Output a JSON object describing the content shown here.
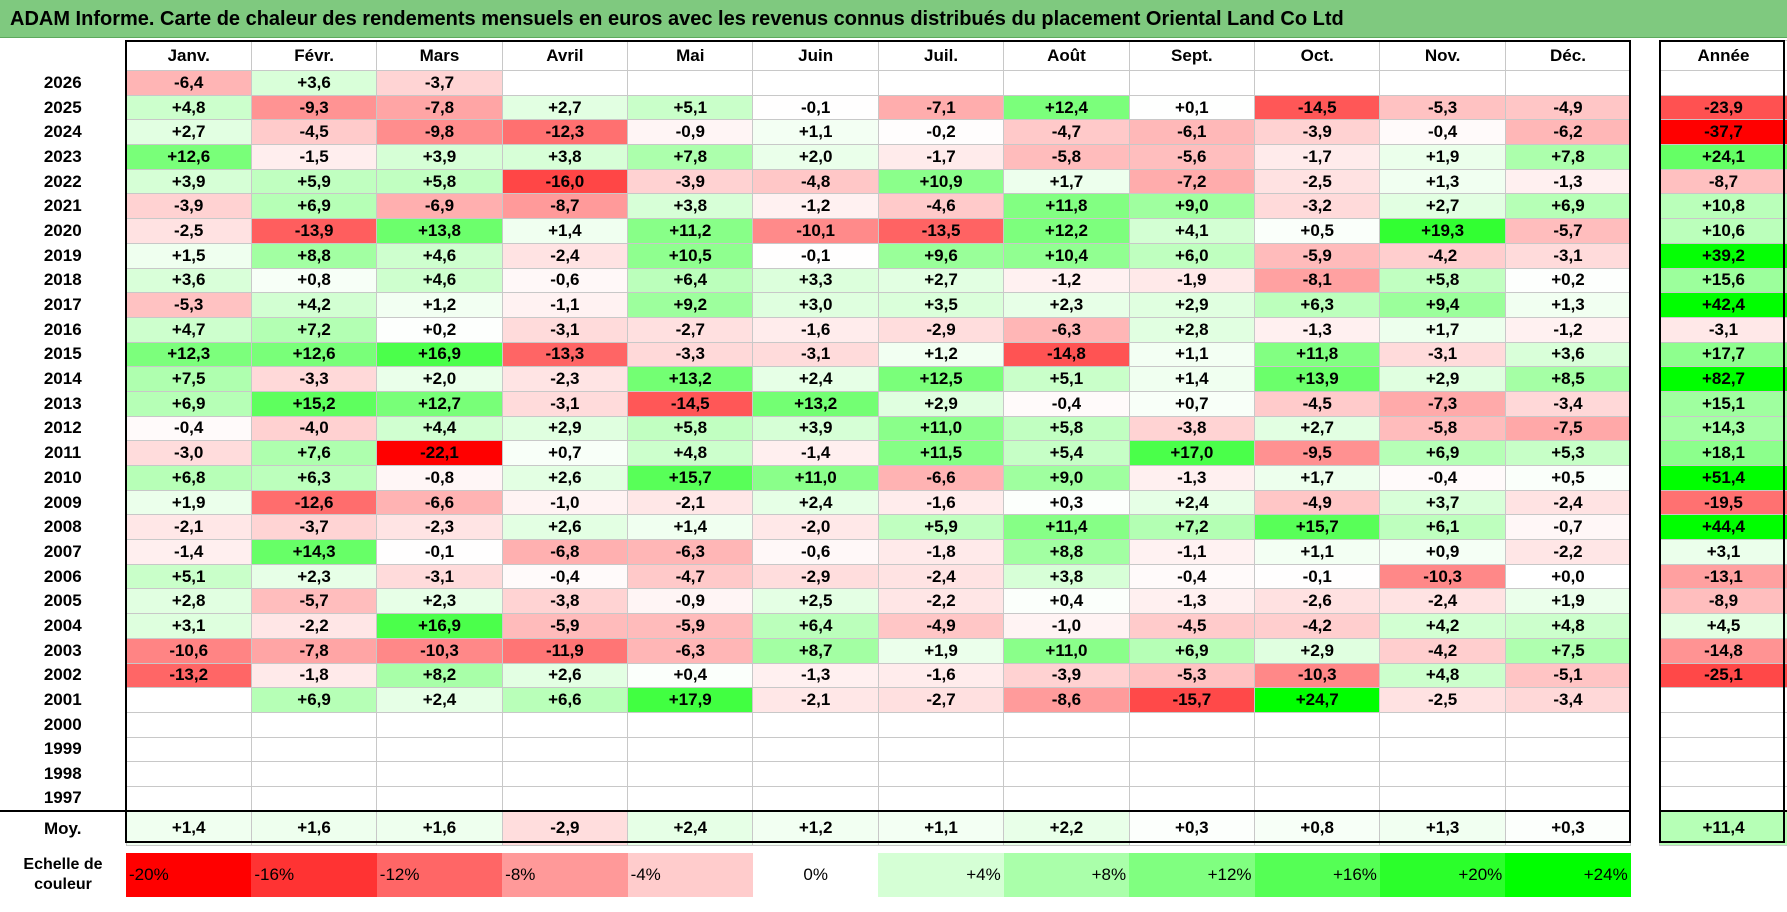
{
  "title": "ADAM Informe. Carte de chaleur des rendements mensuels en euros avec les revenus connus distribués du placement Oriental Land Co Ltd",
  "chart_data": {
    "type": "heatmap",
    "months": [
      "Janv.",
      "Févr.",
      "Mars",
      "Avril",
      "Mai",
      "Juin",
      "Juil.",
      "Août",
      "Sept.",
      "Oct.",
      "Nov.",
      "Déc."
    ],
    "year_header": "Année",
    "rows": [
      {
        "year": "2026",
        "values": [
          "-6,4",
          "+3,6",
          "-3,7",
          "",
          "",
          "",
          "",
          "",
          "",
          "",
          "",
          ""
        ],
        "annual": ""
      },
      {
        "year": "2025",
        "values": [
          "+4,8",
          "-9,3",
          "-7,8",
          "+2,7",
          "+5,1",
          "-0,1",
          "-7,1",
          "+12,4",
          "+0,1",
          "-14,5",
          "-5,3",
          "-4,9"
        ],
        "annual": "-23,9"
      },
      {
        "year": "2024",
        "values": [
          "+2,7",
          "-4,5",
          "-9,8",
          "-12,3",
          "-0,9",
          "+1,1",
          "-0,2",
          "-4,7",
          "-6,1",
          "-3,9",
          "-0,4",
          "-6,2"
        ],
        "annual": "-37,7"
      },
      {
        "year": "2023",
        "values": [
          "+12,6",
          "-1,5",
          "+3,9",
          "+3,8",
          "+7,8",
          "+2,0",
          "-1,7",
          "-5,8",
          "-5,6",
          "-1,7",
          "+1,9",
          "+7,8"
        ],
        "annual": "+24,1"
      },
      {
        "year": "2022",
        "values": [
          "+3,9",
          "+5,9",
          "+5,8",
          "-16,0",
          "-3,9",
          "-4,8",
          "+10,9",
          "+1,7",
          "-7,2",
          "-2,5",
          "+1,3",
          "-1,3"
        ],
        "annual": "-8,7"
      },
      {
        "year": "2021",
        "values": [
          "-3,9",
          "+6,9",
          "-6,9",
          "-8,7",
          "+3,8",
          "-1,2",
          "-4,6",
          "+11,8",
          "+9,0",
          "-3,2",
          "+2,7",
          "+6,9"
        ],
        "annual": "+10,8"
      },
      {
        "year": "2020",
        "values": [
          "-2,5",
          "-13,9",
          "+13,8",
          "+1,4",
          "+11,2",
          "-10,1",
          "-13,5",
          "+12,2",
          "+4,1",
          "+0,5",
          "+19,3",
          "-5,7"
        ],
        "annual": "+10,6"
      },
      {
        "year": "2019",
        "values": [
          "+1,5",
          "+8,8",
          "+4,6",
          "-2,4",
          "+10,5",
          "-0,1",
          "+9,6",
          "+10,4",
          "+6,0",
          "-5,9",
          "-4,2",
          "-3,1"
        ],
        "annual": "+39,2"
      },
      {
        "year": "2018",
        "values": [
          "+3,6",
          "+0,8",
          "+4,6",
          "-0,6",
          "+6,4",
          "+3,3",
          "+2,7",
          "-1,2",
          "-1,9",
          "-8,1",
          "+5,8",
          "+0,2"
        ],
        "annual": "+15,6"
      },
      {
        "year": "2017",
        "values": [
          "-5,3",
          "+4,2",
          "+1,2",
          "-1,1",
          "+9,2",
          "+3,0",
          "+3,5",
          "+2,3",
          "+2,9",
          "+6,3",
          "+9,4",
          "+1,3"
        ],
        "annual": "+42,4"
      },
      {
        "year": "2016",
        "values": [
          "+4,7",
          "+7,2",
          "+0,2",
          "-3,1",
          "-2,7",
          "-1,6",
          "-2,9",
          "-6,3",
          "+2,8",
          "-1,3",
          "+1,7",
          "-1,2"
        ],
        "annual": "-3,1"
      },
      {
        "year": "2015",
        "values": [
          "+12,3",
          "+12,6",
          "+16,9",
          "-13,3",
          "-3,3",
          "-3,1",
          "+1,2",
          "-14,8",
          "+1,1",
          "+11,8",
          "-3,1",
          "+3,6"
        ],
        "annual": "+17,7"
      },
      {
        "year": "2014",
        "values": [
          "+7,5",
          "-3,3",
          "+2,0",
          "-2,3",
          "+13,2",
          "+2,4",
          "+12,5",
          "+5,1",
          "+1,4",
          "+13,9",
          "+2,9",
          "+8,5"
        ],
        "annual": "+82,7"
      },
      {
        "year": "2013",
        "values": [
          "+6,9",
          "+15,2",
          "+12,7",
          "-3,1",
          "-14,5",
          "+13,2",
          "+2,9",
          "-0,4",
          "+0,7",
          "-4,5",
          "-7,3",
          "-3,4"
        ],
        "annual": "+15,1"
      },
      {
        "year": "2012",
        "values": [
          "-0,4",
          "-4,0",
          "+4,4",
          "+2,9",
          "+5,8",
          "+3,9",
          "+11,0",
          "+5,8",
          "-3,8",
          "+2,7",
          "-5,8",
          "-7,5"
        ],
        "annual": "+14,3"
      },
      {
        "year": "2011",
        "values": [
          "-3,0",
          "+7,6",
          "-22,1",
          "+0,7",
          "+4,8",
          "-1,4",
          "+11,5",
          "+5,4",
          "+17,0",
          "-9,5",
          "+6,9",
          "+5,3"
        ],
        "annual": "+18,1"
      },
      {
        "year": "2010",
        "values": [
          "+6,8",
          "+6,3",
          "-0,8",
          "+2,6",
          "+15,7",
          "+11,0",
          "-6,6",
          "+9,0",
          "-1,3",
          "+1,7",
          "-0,4",
          "+0,5"
        ],
        "annual": "+51,4"
      },
      {
        "year": "2009",
        "values": [
          "+1,9",
          "-12,6",
          "-6,6",
          "-1,0",
          "-2,1",
          "+2,4",
          "-1,6",
          "+0,3",
          "+2,4",
          "-4,9",
          "+3,7",
          "-2,4"
        ],
        "annual": "-19,5"
      },
      {
        "year": "2008",
        "values": [
          "-2,1",
          "-3,7",
          "-2,3",
          "+2,6",
          "+1,4",
          "-2,0",
          "+5,9",
          "+11,4",
          "+7,2",
          "+15,7",
          "+6,1",
          "-0,7"
        ],
        "annual": "+44,4"
      },
      {
        "year": "2007",
        "values": [
          "-1,4",
          "+14,3",
          "-0,1",
          "-6,8",
          "-6,3",
          "-0,6",
          "-1,8",
          "+8,8",
          "-1,1",
          "+1,1",
          "+0,9",
          "-2,2"
        ],
        "annual": "+3,1"
      },
      {
        "year": "2006",
        "values": [
          "+5,1",
          "+2,3",
          "-3,1",
          "-0,4",
          "-4,7",
          "-2,9",
          "-2,4",
          "+3,8",
          "-0,4",
          "-0,1",
          "-10,3",
          "+0,0"
        ],
        "annual": "-13,1"
      },
      {
        "year": "2005",
        "values": [
          "+2,8",
          "-5,7",
          "+2,3",
          "-3,8",
          "-0,9",
          "+2,5",
          "-2,2",
          "+0,4",
          "-1,3",
          "-2,6",
          "-2,4",
          "+1,9"
        ],
        "annual": "-8,9"
      },
      {
        "year": "2004",
        "values": [
          "+3,1",
          "-2,2",
          "+16,9",
          "-5,9",
          "-5,9",
          "+6,4",
          "-4,9",
          "-1,0",
          "-4,5",
          "-4,2",
          "+4,2",
          "+4,8"
        ],
        "annual": "+4,5"
      },
      {
        "year": "2003",
        "values": [
          "-10,6",
          "-7,8",
          "-10,3",
          "-11,9",
          "-6,3",
          "+8,7",
          "+1,9",
          "+11,0",
          "+6,9",
          "+2,9",
          "-4,2",
          "+7,5"
        ],
        "annual": "-14,8"
      },
      {
        "year": "2002",
        "values": [
          "-13,2",
          "-1,8",
          "+8,2",
          "+2,6",
          "+0,4",
          "-1,3",
          "-1,6",
          "-3,9",
          "-5,3",
          "-10,3",
          "+4,8",
          "-5,1"
        ],
        "annual": "-25,1"
      },
      {
        "year": "2001",
        "values": [
          "",
          "+6,9",
          "+2,4",
          "+6,6",
          "+17,9",
          "-2,1",
          "-2,7",
          "-8,6",
          "-15,7",
          "+24,7",
          "-2,5",
          "-3,4"
        ],
        "annual": ""
      },
      {
        "year": "2000",
        "values": [
          "",
          "",
          "",
          "",
          "",
          "",
          "",
          "",
          "",
          "",
          "",
          ""
        ],
        "annual": ""
      },
      {
        "year": "1999",
        "values": [
          "",
          "",
          "",
          "",
          "",
          "",
          "",
          "",
          "",
          "",
          "",
          ""
        ],
        "annual": ""
      },
      {
        "year": "1998",
        "values": [
          "",
          "",
          "",
          "",
          "",
          "",
          "",
          "",
          "",
          "",
          "",
          ""
        ],
        "annual": ""
      },
      {
        "year": "1997",
        "values": [
          "",
          "",
          "",
          "",
          "",
          "",
          "",
          "",
          "",
          "",
          "",
          ""
        ],
        "annual": ""
      }
    ],
    "average": {
      "label": "Moy.",
      "values": [
        "+1,4",
        "+1,6",
        "+1,6",
        "-2,9",
        "+2,4",
        "+1,2",
        "+1,1",
        "+2,2",
        "+0,3",
        "+0,8",
        "+1,3",
        "+0,3"
      ],
      "annual": "+11,4"
    },
    "scale": {
      "label": "Echelle de couleur",
      "steps": [
        {
          "label": "-20%",
          "value": -20
        },
        {
          "label": "-16%",
          "value": -16
        },
        {
          "label": "-12%",
          "value": -12
        },
        {
          "label": "-8%",
          "value": -8
        },
        {
          "label": "-4%",
          "value": -4
        },
        {
          "label": "0%",
          "value": 0
        },
        {
          "label": "+4%",
          "value": 4
        },
        {
          "label": "+8%",
          "value": 8
        },
        {
          "label": "+12%",
          "value": 12
        },
        {
          "label": "+16%",
          "value": 16
        },
        {
          "label": "+20%",
          "value": 20
        },
        {
          "label": "+24%",
          "value": 24
        }
      ]
    }
  }
}
